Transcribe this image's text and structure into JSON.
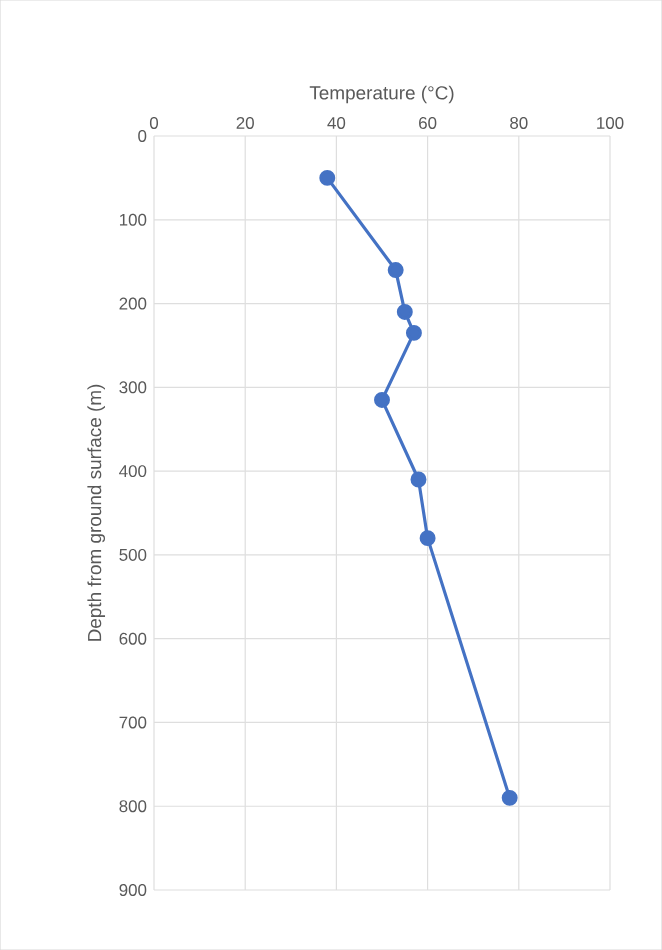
{
  "chart_data": {
    "type": "line",
    "xlabel": "Temperature (°C)",
    "ylabel": "Depth from ground surface (m)",
    "x": [
      38,
      53,
      55,
      57,
      50,
      58,
      60,
      78
    ],
    "values": [
      50,
      160,
      210,
      235,
      315,
      410,
      480,
      790
    ],
    "color": "#4472c4",
    "marker": "circle",
    "line_style": "solid",
    "xlim": [
      0,
      100
    ],
    "xticks": [
      0,
      20,
      40,
      60,
      80,
      100
    ],
    "ylim": [
      900,
      0
    ],
    "yticks": [
      0,
      100,
      200,
      300,
      400,
      500,
      600,
      700,
      800,
      900
    ],
    "grid": true
  }
}
